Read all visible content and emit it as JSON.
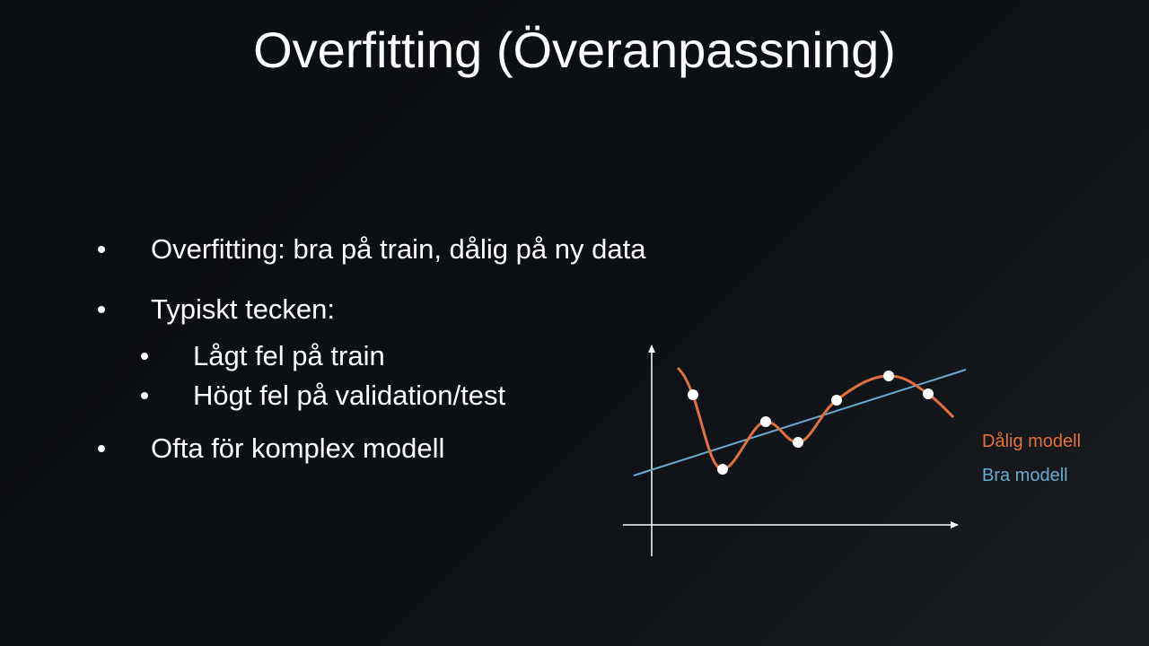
{
  "title": "Overfitting (Överanpassning)",
  "bullets": [
    {
      "text": "Overfitting: bra på train, dålig på ny data"
    },
    {
      "text": "Typiskt tecken:",
      "sub": [
        "Lågt fel på train",
        "Högt fel på validation/test"
      ]
    },
    {
      "text": "Ofta för komplex modell"
    }
  ],
  "diagram": {
    "legend": [
      "Dålig modell",
      "Bra modell"
    ]
  }
}
